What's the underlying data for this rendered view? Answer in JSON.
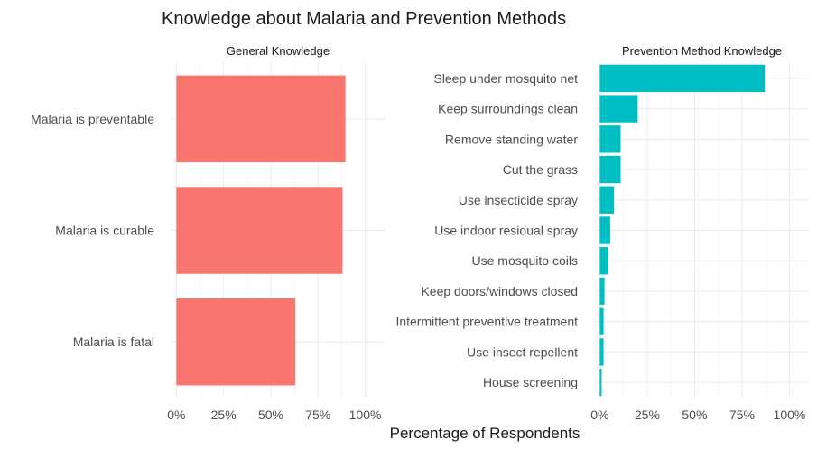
{
  "chart_data": {
    "title": "Knowledge about Malaria and Prevention Methods",
    "xlabel": "Percentage of Respondents",
    "xtick_labels": [
      "0%",
      "25%",
      "50%",
      "75%",
      "100%"
    ],
    "xticks": [
      0,
      25,
      50,
      75,
      100
    ],
    "xlim": [
      0,
      100
    ],
    "grid": true,
    "panels": [
      {
        "type": "bar",
        "orientation": "horizontal",
        "facet_label": "General Knowledge",
        "color": "#F8766D",
        "categories": [
          "Malaria is preventable",
          "Malaria is curable",
          "Malaria is fatal"
        ],
        "values": [
          89.5,
          88,
          63
        ]
      },
      {
        "type": "bar",
        "orientation": "horizontal",
        "facet_label": "Prevention Method Knowledge",
        "color": "#00BFC4",
        "categories": [
          "Sleep under mosquito net",
          "Keep surroundings clean",
          "Remove standing water",
          "Cut the grass",
          "Use insecticide spray",
          "Use indoor residual spray",
          "Use mosquito coils",
          "Keep doors/windows closed",
          "Intermittent preventive treatment",
          "Use insect repellent",
          "House screening"
        ],
        "values": [
          87,
          20,
          11,
          11,
          7.5,
          5.5,
          4.5,
          2.5,
          2,
          2,
          1
        ]
      }
    ]
  }
}
